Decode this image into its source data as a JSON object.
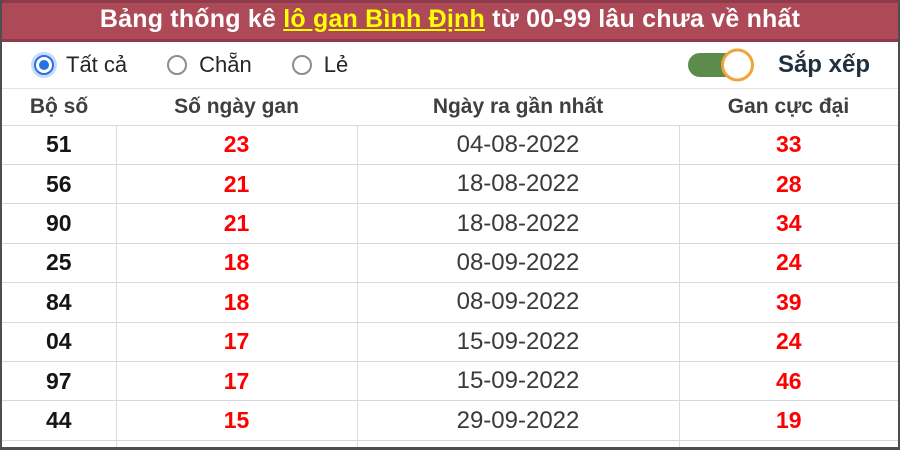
{
  "header": {
    "title_prefix": "Bảng thống kê ",
    "title_link": "lô gan Bình Định",
    "title_suffix": " từ 00-99 lâu chưa về nhất",
    "bg_color": "#ae4a58",
    "border_color": "#8d3a4a",
    "link_color": "#ffff00"
  },
  "filters": {
    "options": [
      {
        "label": "Tất cả",
        "selected": true
      },
      {
        "label": "Chẵn",
        "selected": false
      },
      {
        "label": "Lẻ",
        "selected": false
      }
    ],
    "sort_toggle": {
      "label": "Sắp xếp",
      "on": true,
      "track_color": "#5d8b4c",
      "knob_border_color": "#f2a43a"
    }
  },
  "table": {
    "accent_red": "#fe0000",
    "columns": [
      "Bộ số",
      "Số ngày gan",
      "Ngày ra gần nhất",
      "Gan cực đại"
    ],
    "rows": [
      {
        "number": "51",
        "gan_days": "23",
        "last_date": "04-08-2022",
        "max_gan": "33"
      },
      {
        "number": "56",
        "gan_days": "21",
        "last_date": "18-08-2022",
        "max_gan": "28"
      },
      {
        "number": "90",
        "gan_days": "21",
        "last_date": "18-08-2022",
        "max_gan": "34"
      },
      {
        "number": "25",
        "gan_days": "18",
        "last_date": "08-09-2022",
        "max_gan": "24"
      },
      {
        "number": "84",
        "gan_days": "18",
        "last_date": "08-09-2022",
        "max_gan": "39"
      },
      {
        "number": "04",
        "gan_days": "17",
        "last_date": "15-09-2022",
        "max_gan": "24"
      },
      {
        "number": "97",
        "gan_days": "17",
        "last_date": "15-09-2022",
        "max_gan": "46"
      },
      {
        "number": "44",
        "gan_days": "15",
        "last_date": "29-09-2022",
        "max_gan": "19"
      }
    ]
  }
}
